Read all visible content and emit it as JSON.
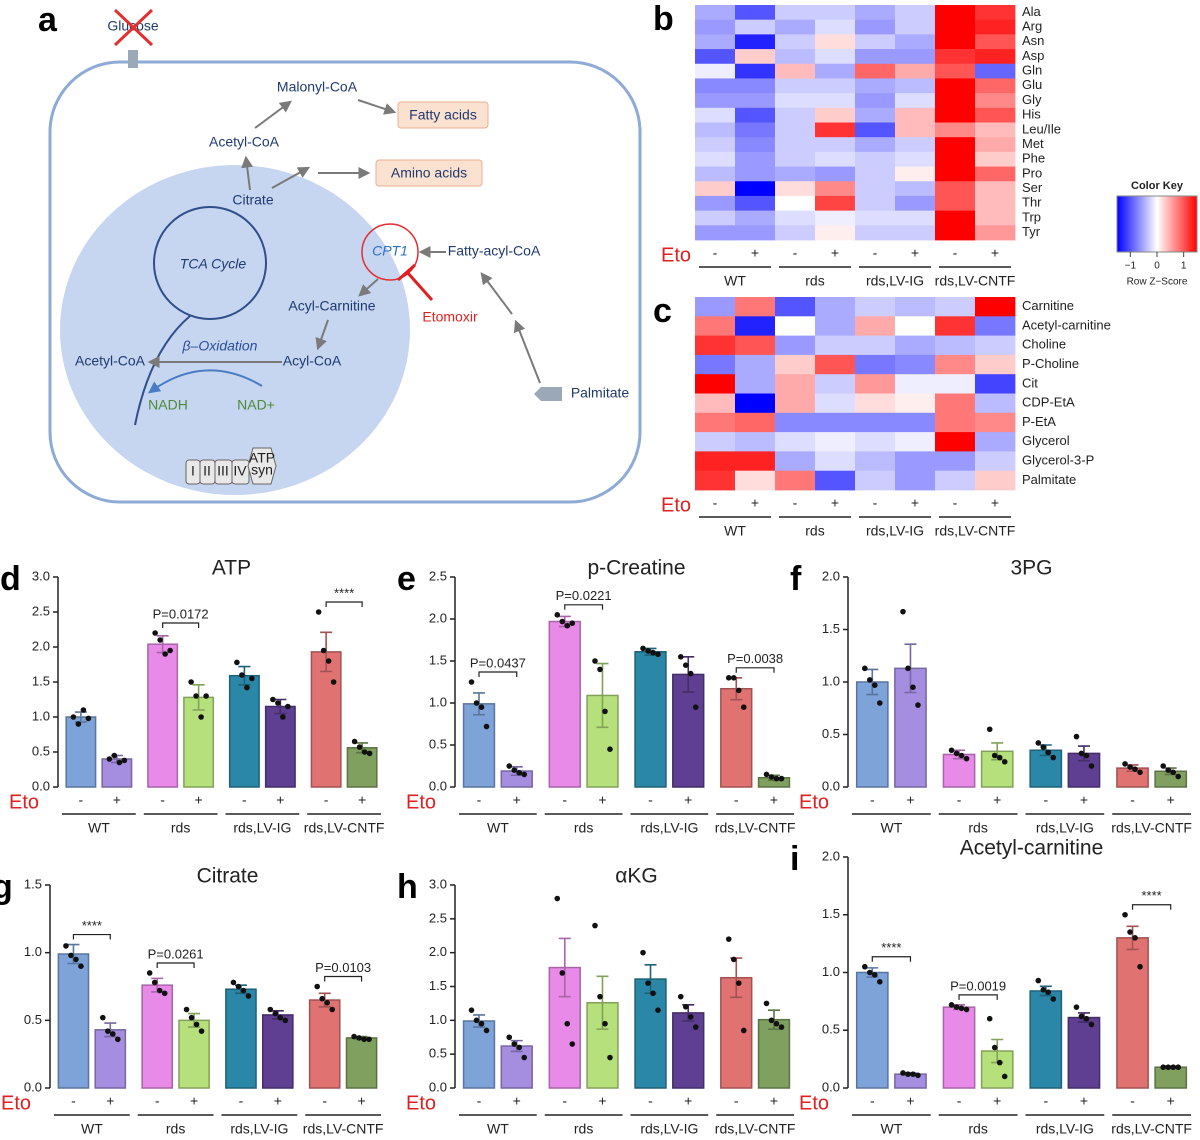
{
  "diagram": {
    "letter": "a",
    "nodes": [
      {
        "label": "Glucose"
      },
      {
        "label": "Malonyl-CoA"
      },
      {
        "label": "Fatty acids"
      },
      {
        "label": "Acetyl-CoA"
      },
      {
        "label": "Amino acids"
      },
      {
        "label": "Citrate"
      },
      {
        "label": "TCA Cycle"
      },
      {
        "label": "CPT1"
      },
      {
        "label": "Fatty-acyl-CoA"
      },
      {
        "label": "Acyl-Carnitine"
      },
      {
        "label": "Etomoxir"
      },
      {
        "label": "β–Oxidation"
      },
      {
        "label": "Acetyl-CoA"
      },
      {
        "label": "Acyl-CoA"
      },
      {
        "label": "NADH"
      },
      {
        "label": "NAD+"
      },
      {
        "label": "Palmitate"
      },
      {
        "label": "I"
      },
      {
        "label": "II"
      },
      {
        "label": "III"
      },
      {
        "label": "IV"
      },
      {
        "label": "ATP"
      },
      {
        "label": "syn"
      }
    ]
  },
  "chart_data": [
    {
      "type": "heatmap",
      "letter": "b",
      "rows": [
        "Ala",
        "Arg",
        "Asn",
        "Asp",
        "Gln",
        "Glu",
        "Gly",
        "His",
        "Leu/Ile",
        "Met",
        "Phe",
        "Pro",
        "Ser",
        "Thr",
        "Trp",
        "Tyr"
      ],
      "categories": [
        "-",
        "+",
        "-",
        "+",
        "-",
        "+",
        "-",
        "+"
      ],
      "factor_label": "Eto",
      "groups": [
        {
          "name": "WT"
        },
        {
          "name": "rds"
        },
        {
          "name": "rds,LV-IG"
        },
        {
          "name": "rds,LV-CNTF"
        }
      ],
      "values": [
        [
          -0.5,
          -1,
          -0.3,
          -0.3,
          -0.5,
          -0.3,
          1.5,
          1.2
        ],
        [
          -0.6,
          -0.3,
          -0.5,
          -0.2,
          -0.6,
          -0.3,
          1.5,
          1.3
        ],
        [
          -0.5,
          -1.3,
          -0.3,
          0.2,
          -0.3,
          -0.5,
          1.5,
          1.0
        ],
        [
          -1.0,
          0.3,
          -0.4,
          -0.2,
          -0.6,
          -0.6,
          1.2,
          1.3
        ],
        [
          -0.1,
          -1.2,
          0.4,
          -0.5,
          0.9,
          0.5,
          1.0,
          -0.9
        ],
        [
          -0.7,
          -0.7,
          -0.3,
          -0.3,
          -0.5,
          -0.4,
          1.5,
          0.9
        ],
        [
          -0.6,
          -0.6,
          -0.2,
          -0.2,
          -0.6,
          -0.2,
          1.5,
          0.7
        ],
        [
          -0.2,
          -1.0,
          -0.3,
          0.3,
          -0.5,
          0.4,
          1.5,
          1.0
        ],
        [
          -0.4,
          -0.8,
          -0.3,
          1.2,
          -1.0,
          0.4,
          0.7,
          0.4
        ],
        [
          -0.3,
          -0.7,
          -0.3,
          -0.3,
          -0.5,
          -0.3,
          1.5,
          0.5
        ],
        [
          -0.2,
          -0.6,
          -0.3,
          -0.2,
          -0.3,
          -0.2,
          1.5,
          0.3
        ],
        [
          -0.4,
          -0.6,
          -0.5,
          -0.6,
          -0.3,
          0.1,
          1.5,
          0.9
        ],
        [
          0.3,
          -1.5,
          0.2,
          0.7,
          -0.3,
          -0.4,
          1.0,
          0.4
        ],
        [
          -0.6,
          -1.0,
          0.0,
          1.1,
          -0.3,
          -0.6,
          1.0,
          0.4
        ],
        [
          -0.3,
          -0.5,
          -0.2,
          -0.1,
          -0.2,
          -0.2,
          1.5,
          0.4
        ],
        [
          -0.6,
          -0.6,
          -0.3,
          0.1,
          -0.3,
          -0.3,
          1.5,
          0.6
        ]
      ],
      "zlim": [
        -1.5,
        1.5
      ],
      "colormap": [
        "#0000ff",
        "#ffffff",
        "#ff0000"
      ],
      "colorbar": {
        "title": "Color Key",
        "label": "Row Z−Score",
        "ticks": [
          {
            "value": -1,
            "label": "−1"
          },
          0,
          1
        ]
      }
    },
    {
      "type": "heatmap",
      "letter": "c",
      "rows": [
        "Carnitine",
        "Acetyl-carnitine",
        "Choline",
        "P-Choline",
        "Cit",
        "CDP-EtA",
        "P-EtA",
        "Glycerol",
        "Glycerol-3-P",
        "Palmitate"
      ],
      "categories": [
        "-",
        "+",
        "-",
        "+",
        "-",
        "+",
        "-",
        "+"
      ],
      "factor_label": "Eto",
      "groups": [
        {
          "name": "WT"
        },
        {
          "name": "rds"
        },
        {
          "name": "rds,LV-IG"
        },
        {
          "name": "rds,LV-CNTF"
        }
      ],
      "values": [
        [
          -0.6,
          0.8,
          -1.0,
          -0.5,
          -0.3,
          -0.4,
          -0.3,
          1.5
        ],
        [
          0.8,
          -1.3,
          0.0,
          -0.5,
          0.5,
          0.0,
          1.2,
          -0.8
        ],
        [
          1.2,
          1.0,
          -0.6,
          -0.3,
          -0.3,
          -0.5,
          -0.4,
          -0.3
        ],
        [
          -0.8,
          -0.5,
          0.3,
          1.0,
          -0.8,
          -0.7,
          0.7,
          0.3
        ],
        [
          1.5,
          -0.5,
          0.5,
          -0.3,
          0.6,
          -0.1,
          -0.1,
          -1.1
        ],
        [
          0.4,
          -1.5,
          0.5,
          -0.2,
          0.2,
          0.1,
          0.8,
          -0.4
        ],
        [
          0.8,
          0.9,
          -0.7,
          -0.7,
          -0.7,
          -0.7,
          0.8,
          0.7
        ],
        [
          -0.3,
          -0.4,
          -0.2,
          -0.1,
          -0.2,
          -0.1,
          1.5,
          -0.5
        ],
        [
          1.3,
          1.3,
          -0.5,
          -0.2,
          -0.4,
          -0.6,
          -0.6,
          -0.3
        ],
        [
          1.2,
          0.2,
          0.8,
          -1.0,
          -0.3,
          -0.6,
          -0.3,
          0.3
        ]
      ],
      "zlim": [
        -1.5,
        1.5
      ],
      "colormap": [
        "#0000ff",
        "#ffffff",
        "#ff0000"
      ]
    },
    {
      "type": "bar",
      "letter": "d",
      "title": "ATP",
      "categories": [
        "-",
        "+",
        "-",
        "+",
        "-",
        "+",
        "-",
        "+"
      ],
      "factor_label": "Eto",
      "groups": [
        {
          "name": "WT"
        },
        {
          "name": "rds",
          "annotation": "P=0.0172"
        },
        {
          "name": "rds,LV-IG"
        },
        {
          "name": "rds,LV-CNTF",
          "annotation": "****"
        }
      ],
      "values": [
        1.0,
        0.4,
        2.04,
        1.28,
        1.59,
        1.15,
        1.93,
        0.56
      ],
      "errors": [
        0.07,
        0.05,
        0.12,
        0.18,
        0.13,
        0.1,
        0.28,
        0.07
      ],
      "points": [
        [
          1.0,
          0.9,
          1.1,
          0.98
        ],
        [
          0.4,
          0.45,
          0.35,
          0.38
        ],
        [
          2.2,
          2.1,
          1.9,
          1.95
        ],
        [
          1.5,
          1.3,
          1.0,
          1.3
        ],
        [
          1.78,
          1.6,
          1.42,
          1.55
        ],
        [
          1.25,
          1.2,
          1.0,
          1.15
        ],
        [
          2.5,
          1.95,
          1.8,
          1.5
        ],
        [
          0.65,
          0.57,
          0.5,
          0.48
        ]
      ],
      "colors": [
        "#7da3d8",
        "#a58ee0",
        "#e88be8",
        "#b6e07c",
        "#2a87a8",
        "#5e3f91",
        "#e07272",
        "#7fa05e"
      ],
      "ylim": [
        0,
        3
      ],
      "yticks": [
        {
          "value": 0,
          "label": "0.0"
        },
        0.5,
        {
          "value": 1,
          "label": "1.0"
        },
        1.5,
        {
          "value": 2,
          "label": "2.0"
        },
        2.5,
        {
          "value": 3,
          "label": "3.0"
        }
      ]
    },
    {
      "type": "bar",
      "letter": "e",
      "title": "p-Creatine",
      "categories": [
        "-",
        "+",
        "-",
        "+",
        "-",
        "+",
        "-",
        "+"
      ],
      "factor_label": "Eto",
      "groups": [
        {
          "name": "WT",
          "annotation": "P=0.0437"
        },
        {
          "name": "rds",
          "annotation": "P=0.0221"
        },
        {
          "name": "rds,LV-IG"
        },
        {
          "name": "rds,LV-CNTF",
          "annotation": "P=0.0038"
        }
      ],
      "values": [
        0.99,
        0.19,
        1.97,
        1.09,
        1.61,
        1.34,
        1.17,
        0.11
      ],
      "errors": [
        0.13,
        0.05,
        0.06,
        0.38,
        0.04,
        0.21,
        0.13,
        0.03
      ],
      "points": [
        [
          1.25,
          1.0,
          0.95,
          0.72
        ],
        [
          0.25,
          0.2,
          0.17,
          0.15
        ],
        [
          2.05,
          1.97,
          1.92,
          1.95
        ],
        [
          1.5,
          1.4,
          0.9,
          0.45
        ],
        [
          1.65,
          1.62,
          1.6,
          1.58
        ],
        [
          1.55,
          1.45,
          1.35,
          0.95
        ],
        [
          1.3,
          1.3,
          1.15,
          0.95
        ],
        [
          0.15,
          0.12,
          0.1,
          0.1
        ]
      ],
      "colors": [
        "#7da3d8",
        "#a58ee0",
        "#e88be8",
        "#b6e07c",
        "#2a87a8",
        "#5e3f91",
        "#e07272",
        "#7fa05e"
      ],
      "ylim": [
        0,
        2.5
      ],
      "yticks": [
        {
          "value": 0,
          "label": "0.0"
        },
        0.5,
        {
          "value": 1,
          "label": "1.0"
        },
        1.5,
        {
          "value": 2,
          "label": "2.0"
        },
        2.5
      ]
    },
    {
      "type": "bar",
      "letter": "f",
      "title": "3PG",
      "categories": [
        "-",
        "+",
        "-",
        "+",
        "-",
        "+",
        "-",
        "+"
      ],
      "factor_label": "Eto",
      "groups": [
        {
          "name": "WT"
        },
        {
          "name": "rds"
        },
        {
          "name": "rds,LV-IG"
        },
        {
          "name": "rds,LV-CNTF"
        }
      ],
      "values": [
        1.0,
        1.13,
        0.31,
        0.34,
        0.35,
        0.32,
        0.18,
        0.15
      ],
      "errors": [
        0.12,
        0.23,
        0.04,
        0.08,
        0.05,
        0.07,
        0.03,
        0.03
      ],
      "points": [
        [
          1.13,
          1.02,
          0.97,
          0.8
        ],
        [
          1.67,
          1.13,
          0.95,
          0.78
        ],
        [
          0.35,
          0.32,
          0.3,
          0.27
        ],
        [
          0.55,
          0.3,
          0.28,
          0.24
        ],
        [
          0.42,
          0.38,
          0.33,
          0.28
        ],
        [
          0.48,
          0.32,
          0.3,
          0.2
        ],
        [
          0.22,
          0.19,
          0.17,
          0.14
        ],
        [
          0.2,
          0.16,
          0.14,
          0.1
        ]
      ],
      "colors": [
        "#7da3d8",
        "#a58ee0",
        "#e88be8",
        "#b6e07c",
        "#2a87a8",
        "#5e3f91",
        "#e07272",
        "#7fa05e"
      ],
      "ylim": [
        0,
        2
      ],
      "yticks": [
        {
          "value": 0,
          "label": "0.0"
        },
        0.5,
        {
          "value": 1,
          "label": "1.0"
        },
        1.5,
        {
          "value": 2,
          "label": "2.0"
        }
      ]
    },
    {
      "type": "bar",
      "letter": "g",
      "title": "Citrate",
      "categories": [
        "-",
        "+",
        "-",
        "+",
        "-",
        "+",
        "-",
        "+"
      ],
      "factor_label": "Eto",
      "groups": [
        {
          "name": "WT",
          "annotation": "****"
        },
        {
          "name": "rds",
          "annotation": "P=0.0261"
        },
        {
          "name": "rds,LV-IG"
        },
        {
          "name": "rds,LV-CNTF",
          "annotation": "P=0.0103"
        }
      ],
      "values": [
        0.99,
        0.43,
        0.76,
        0.5,
        0.73,
        0.54,
        0.65,
        0.37
      ],
      "errors": [
        0.07,
        0.05,
        0.05,
        0.05,
        0.03,
        0.03,
        0.05,
        0.01
      ],
      "points": [
        [
          1.05,
          0.98,
          0.95,
          0.9
        ],
        [
          0.52,
          0.42,
          0.4,
          0.36
        ],
        [
          0.85,
          0.78,
          0.72,
          0.7
        ],
        [
          0.58,
          0.52,
          0.47,
          0.42
        ],
        [
          0.78,
          0.75,
          0.72,
          0.68
        ],
        [
          0.58,
          0.55,
          0.52,
          0.5
        ],
        [
          0.75,
          0.66,
          0.63,
          0.58
        ],
        [
          0.38,
          0.37,
          0.36,
          0.36
        ]
      ],
      "colors": [
        "#7da3d8",
        "#a58ee0",
        "#e88be8",
        "#b6e07c",
        "#2a87a8",
        "#5e3f91",
        "#e07272",
        "#7fa05e"
      ],
      "ylim": [
        0,
        1.5
      ],
      "yticks": [
        {
          "value": 0,
          "label": "0.0"
        },
        0.5,
        {
          "value": 1,
          "label": "1.0"
        },
        1.5
      ]
    },
    {
      "type": "bar",
      "letter": "h",
      "title": "αKG",
      "categories": [
        "-",
        "+",
        "-",
        "+",
        "-",
        "+",
        "-",
        "+"
      ],
      "factor_label": "Eto",
      "groups": [
        {
          "name": "WT"
        },
        {
          "name": "rds"
        },
        {
          "name": "rds,LV-IG"
        },
        {
          "name": "rds,LV-CNTF"
        }
      ],
      "values": [
        0.99,
        0.62,
        1.78,
        1.26,
        1.61,
        1.11,
        1.63,
        1.01
      ],
      "errors": [
        0.09,
        0.08,
        0.43,
        0.39,
        0.21,
        0.12,
        0.29,
        0.14
      ],
      "points": [
        [
          1.15,
          1.0,
          0.95,
          0.85
        ],
        [
          0.75,
          0.65,
          0.6,
          0.45
        ],
        [
          2.8,
          1.7,
          0.95,
          0.65
        ],
        [
          2.4,
          1.35,
          0.95,
          0.45
        ],
        [
          2.0,
          1.55,
          1.4,
          1.15
        ],
        [
          1.35,
          1.2,
          1.05,
          0.9
        ],
        [
          2.2,
          1.9,
          1.55,
          0.85
        ],
        [
          1.25,
          1.0,
          0.95,
          0.9
        ]
      ],
      "colors": [
        "#7da3d8",
        "#a58ee0",
        "#e88be8",
        "#b6e07c",
        "#2a87a8",
        "#5e3f91",
        "#e07272",
        "#7fa05e"
      ],
      "ylim": [
        0,
        3
      ],
      "yticks": [
        {
          "value": 0,
          "label": "0.0"
        },
        0.5,
        {
          "value": 1,
          "label": "1.0"
        },
        1.5,
        {
          "value": 2,
          "label": "2.0"
        },
        2.5,
        {
          "value": 3,
          "label": "3.0"
        }
      ]
    },
    {
      "type": "bar",
      "letter": "i",
      "title": "Acetyl-carnitine",
      "categories": [
        "-",
        "+",
        "-",
        "+",
        "-",
        "+",
        "-",
        "+"
      ],
      "factor_label": "Eto",
      "groups": [
        {
          "name": "WT",
          "annotation": "****"
        },
        {
          "name": "rds",
          "annotation": "P=0.0019"
        },
        {
          "name": "rds,LV-IG"
        },
        {
          "name": "rds,LV-CNTF",
          "annotation": "****"
        }
      ],
      "values": [
        1.0,
        0.12,
        0.7,
        0.32,
        0.84,
        0.61,
        1.3,
        0.18
      ],
      "errors": [
        0.04,
        0.01,
        0.02,
        0.1,
        0.04,
        0.04,
        0.1,
        0.01
      ],
      "points": [
        [
          1.05,
          1.0,
          0.98,
          0.92
        ],
        [
          0.13,
          0.12,
          0.12,
          0.11
        ],
        [
          0.72,
          0.7,
          0.69,
          0.68
        ],
        [
          0.6,
          0.35,
          0.22,
          0.1
        ],
        [
          0.93,
          0.85,
          0.83,
          0.77
        ],
        [
          0.7,
          0.62,
          0.6,
          0.55
        ],
        [
          1.5,
          1.35,
          1.3,
          1.05
        ],
        [
          0.18,
          0.18,
          0.18,
          0.18
        ]
      ],
      "colors": [
        "#7da3d8",
        "#a58ee0",
        "#e88be8",
        "#b6e07c",
        "#2a87a8",
        "#5e3f91",
        "#e07272",
        "#7fa05e"
      ],
      "ylim": [
        0,
        2
      ],
      "yticks": [
        {
          "value": 0,
          "label": "0.0"
        },
        0.5,
        {
          "value": 1,
          "label": "1.0"
        },
        1.5,
        {
          "value": 2,
          "label": "2.0"
        }
      ]
    }
  ]
}
